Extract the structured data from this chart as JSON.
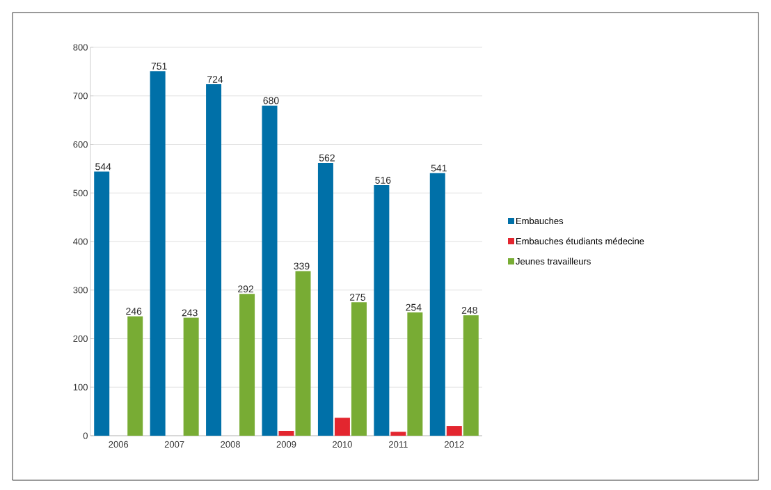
{
  "chart_data": {
    "type": "bar",
    "categories": [
      "2006",
      "2007",
      "2008",
      "2009",
      "2010",
      "2011",
      "2012"
    ],
    "series": [
      {
        "name": "Embauches",
        "color": "#0070a8",
        "values": [
          544,
          751,
          724,
          680,
          562,
          516,
          541
        ],
        "value_labels": [
          "544",
          "751",
          "724",
          "680",
          "562",
          "516",
          "541"
        ]
      },
      {
        "name": "Embauches étudiants médecine",
        "color": "#e3262f",
        "values": [
          null,
          null,
          null,
          10,
          37,
          8,
          20
        ]
      },
      {
        "name": "Jeunes travailleurs",
        "color": "#78ac34",
        "values": [
          246,
          243,
          292,
          339,
          275,
          254,
          248
        ],
        "value_labels": [
          "246",
          "243",
          "292",
          "339",
          "275",
          "254",
          "248"
        ]
      }
    ],
    "ylim": [
      0,
      800
    ],
    "yticks": [
      0,
      100,
      200,
      300,
      400,
      500,
      600,
      700,
      800
    ],
    "grid": "y",
    "legend": "right"
  }
}
